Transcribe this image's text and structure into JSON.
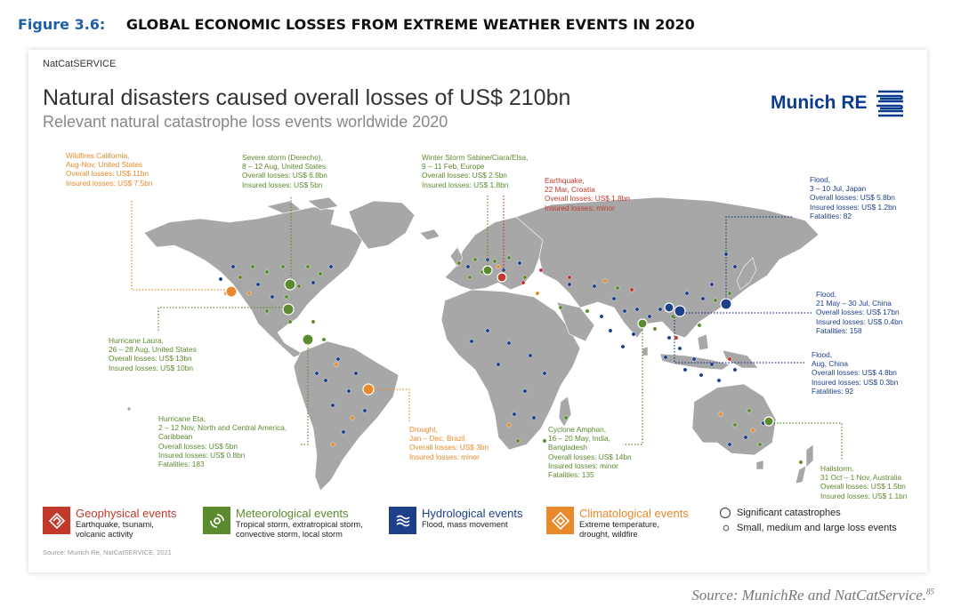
{
  "figure": {
    "number": "Figure 3.6:",
    "title": "GLOBAL ECONOMIC LOSSES FROM EXTREME WEATHER EVENTS IN 2020"
  },
  "panel": {
    "service_label": "NatCatSERVICE",
    "title": "Natural disasters caused overall losses of US$ 210bn",
    "subtitle": "Relevant natural catastrophe loss events worldwide 2020",
    "brand": "Munich RE",
    "source_note": "Source: Munich Re, NatCatSERVICE, 2021"
  },
  "callouts": [
    {
      "id": "wildfires",
      "lines": [
        "Wildfires California,",
        "Aug-Nov, United States",
        "Overall losses: US$ 11bn",
        "Insured losses: US$ 7.5bn"
      ]
    },
    {
      "id": "derecho",
      "lines": [
        "Severe storm (Derecho),",
        "8 – 12 Aug, United States",
        "Overall losses: US$ 6.8bn",
        "Insured losses: US$ 5bn"
      ]
    },
    {
      "id": "sabine",
      "lines": [
        "Winter Storm Sabine/Ciara/Elsa,",
        "9 – 11 Feb, Europe",
        "Overall losses: US$ 2.5bn",
        "Insured losses: US$ 1.8bn"
      ]
    },
    {
      "id": "croatia",
      "lines": [
        "Earthquake,",
        "22 Mar, Croatia",
        "Overall losses: US$ 1.8bn",
        "Insured losses: minor"
      ]
    },
    {
      "id": "japan",
      "lines": [
        "Flood,",
        "3 – 10 Jul, Japan",
        "Overall losses: US$ 5.8bn",
        "Insured losses: US$ 1.2bn",
        "Fatalities: 82"
      ]
    },
    {
      "id": "china_jul",
      "lines": [
        "Flood,",
        "21 May – 30 Jul, China",
        "Overall losses: US$ 17bn",
        "Insured losses: US$ 0.4bn",
        "Fatalities: 158"
      ]
    },
    {
      "id": "china_aug",
      "lines": [
        "Flood,",
        "Aug, China",
        "Overall losses: US$ 4.8bn",
        "Insured losses: US$ 0.3bn",
        "Fatalities: 92"
      ]
    },
    {
      "id": "laura",
      "lines": [
        "Hurricane Laura,",
        "26 – 28 Aug, United States",
        "Overall losses: US$ 13bn",
        "Insured losses: US$ 10bn"
      ]
    },
    {
      "id": "eta",
      "lines": [
        "Hurricane Eta,",
        "2 – 12 Nov, North and Central America,",
        "Caribbean",
        "Overall losses: US$ 5bn",
        "Insured losses: US$ 0.8bn",
        "Fatalities: 183"
      ]
    },
    {
      "id": "drought",
      "lines": [
        "Drought,",
        "Jan – Dec, Brazil",
        "Overall losses: US$ 3bn",
        "Insured losses: minor"
      ]
    },
    {
      "id": "amphan",
      "lines": [
        "Cyclone Amphan,",
        "16 – 20 May, India,",
        "Bangladesh",
        "Overall losses: US$ 14bn",
        "Insured losses: minor",
        "Fatalities: 135"
      ]
    },
    {
      "id": "hailstorm",
      "lines": [
        "Hailstorm,",
        "31 Oct – 1 Nov, Australia",
        "Overall losses: US$ 1.5bn",
        "Insured losses: US$ 1.1bn"
      ]
    }
  ],
  "legend": {
    "geophysical": {
      "title": "Geophysical events",
      "desc": [
        "Earthquake, tsunami,",
        "volcanic activity"
      ],
      "color": "#c0392b"
    },
    "meteorological": {
      "title": "Meteorological events",
      "desc": [
        "Tropical storm, extratropical storm,",
        "convective storm, local storm"
      ],
      "color": "#5c8a2e"
    },
    "hydrological": {
      "title": "Hydrological events",
      "desc": [
        "Flood, mass movement"
      ],
      "color": "#1e3f8a"
    },
    "climatological": {
      "title": "Climatological events",
      "desc": [
        "Extreme temperature,",
        "drought, wildfire"
      ],
      "color": "#e8892b"
    },
    "significant": "Significant catastrophes",
    "small": "Small, medium and large loss events"
  },
  "source": {
    "text": "Source: MunichRe and NatCatService.",
    "ref": "85"
  },
  "colors": {
    "land": "#a7a7a7",
    "geophysical": "#c0392b",
    "meteorological": "#5c8a2e",
    "hydrological": "#1e3f8a",
    "climatological": "#e8892b",
    "header_accent": "#1f5fa8"
  }
}
